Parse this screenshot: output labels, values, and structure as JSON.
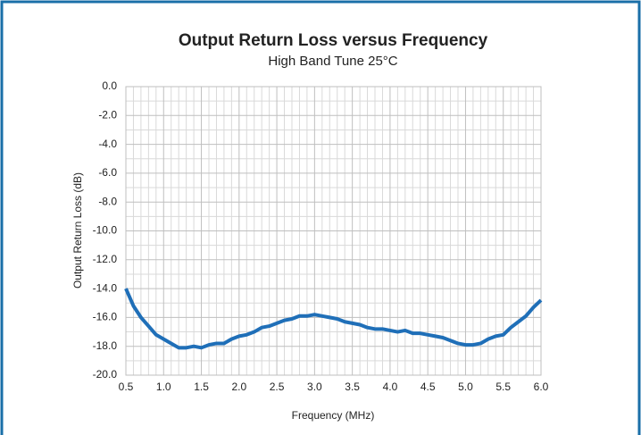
{
  "chart_data": {
    "type": "line",
    "title": "Output Return Loss versus Frequency",
    "subtitle": "High Band Tune 25°C",
    "x_label": "Frequency (MHz)",
    "y_label": "Output Return Loss (dB)",
    "x": [
      0.5,
      0.6,
      0.7,
      0.8,
      0.9,
      1.0,
      1.1,
      1.2,
      1.3,
      1.4,
      1.5,
      1.6,
      1.7,
      1.8,
      1.9,
      2.0,
      2.1,
      2.2,
      2.3,
      2.4,
      2.5,
      2.6,
      2.7,
      2.8,
      2.9,
      3.0,
      3.1,
      3.2,
      3.3,
      3.4,
      3.5,
      3.6,
      3.7,
      3.8,
      3.9,
      4.0,
      4.1,
      4.2,
      4.3,
      4.4,
      4.5,
      4.6,
      4.7,
      4.8,
      4.9,
      5.0,
      5.1,
      5.2,
      5.3,
      5.4,
      5.5,
      5.6,
      5.7,
      5.8,
      5.9,
      6.0
    ],
    "series": [
      {
        "color": "#1f6fb8",
        "values": [
          -14.0,
          -15.2,
          -16.0,
          -16.6,
          -17.2,
          -17.5,
          -17.8,
          -18.1,
          -18.1,
          -18.0,
          -18.1,
          -17.9,
          -17.8,
          -17.8,
          -17.5,
          -17.3,
          -17.2,
          -17.0,
          -16.7,
          -16.6,
          -16.4,
          -16.2,
          -16.1,
          -15.9,
          -15.9,
          -15.8,
          -15.9,
          -16.0,
          -16.1,
          -16.3,
          -16.4,
          -16.5,
          -16.7,
          -16.8,
          -16.8,
          -16.9,
          -17.0,
          -16.9,
          -17.1,
          -17.1,
          -17.2,
          -17.3,
          -17.4,
          -17.6,
          -17.8,
          -17.9,
          -17.9,
          -17.8,
          -17.5,
          -17.3,
          -17.2,
          -16.7,
          -16.3,
          -15.9,
          -15.3,
          -14.8
        ]
      }
    ],
    "xlim": [
      0.5,
      6.0
    ],
    "xticks": [
      0.5,
      {
        "value": 1,
        "label": "1.0"
      },
      1.5,
      {
        "value": 2,
        "label": "2.0"
      },
      2.5,
      {
        "value": 3,
        "label": "3.0"
      },
      3.5,
      {
        "value": 4,
        "label": "4.0"
      },
      4.5,
      {
        "value": 5,
        "label": "5.0"
      },
      5.5,
      {
        "value": 6,
        "label": "6.0"
      }
    ],
    "ylim": [
      -20,
      0
    ],
    "yticks": [
      {
        "value": 0,
        "label": "0.0"
      },
      {
        "value": -2,
        "label": "-2.0"
      },
      {
        "value": -4,
        "label": "-4.0"
      },
      {
        "value": -6,
        "label": "-6.0"
      },
      {
        "value": -8,
        "label": "-8.0"
      },
      {
        "value": -10,
        "label": "-10.0"
      },
      {
        "value": -12,
        "label": "-12.0"
      },
      {
        "value": -14,
        "label": "-14.0"
      },
      {
        "value": -16,
        "label": "-16.0"
      },
      {
        "value": -18,
        "label": "-18.0"
      },
      {
        "value": -20,
        "label": "-20.0"
      }
    ],
    "grid": true
  }
}
